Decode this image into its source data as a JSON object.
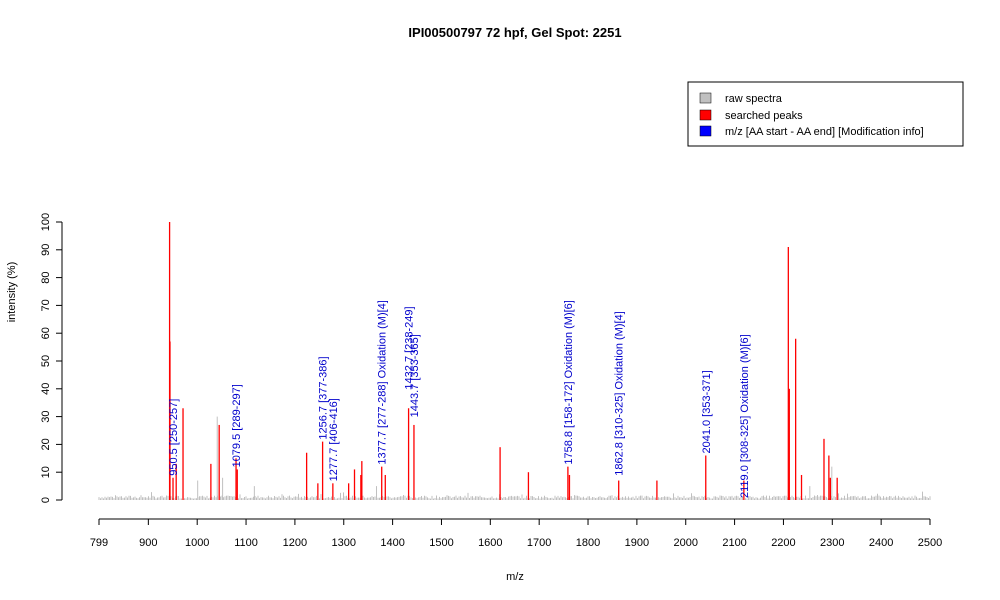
{
  "chart_data": {
    "type": "bar",
    "title": "IPI00500797  72 hpf, Gel Spot: 2251",
    "xlabel": "m/z",
    "ylabel": "intensity (%)",
    "xlim": [
      799,
      2500
    ],
    "ylim": [
      0,
      100
    ],
    "x_ticks": [
      799,
      900,
      1000,
      1100,
      1200,
      1300,
      1400,
      1500,
      1600,
      1700,
      1800,
      1900,
      2000,
      2100,
      2200,
      2300,
      2400,
      2500
    ],
    "y_ticks": [
      0,
      10,
      20,
      30,
      40,
      50,
      60,
      70,
      80,
      90,
      100
    ],
    "legend": {
      "placement": "top-right",
      "entries": [
        {
          "label": "raw spectra",
          "color": "#c0c0c0"
        },
        {
          "label": "searched peaks",
          "color": "#ff0000"
        },
        {
          "label": "m/z [AA start - AA end] [Modification info]",
          "color": "#0000ff"
        }
      ]
    },
    "colors": {
      "raw": "#c0c0c0",
      "peak": "#ff0000",
      "label": "#0000cc"
    },
    "searched_peaks": [
      {
        "mz": 943.5,
        "intensity": 100
      },
      {
        "mz": 944.3,
        "intensity": 57
      },
      {
        "mz": 957,
        "intensity": 13
      },
      {
        "mz": 971,
        "intensity": 33
      },
      {
        "mz": 950.5,
        "intensity": 8
      },
      {
        "mz": 1028,
        "intensity": 13
      },
      {
        "mz": 1045,
        "intensity": 27
      },
      {
        "mz": 1079.5,
        "intensity": 15
      },
      {
        "mz": 1082,
        "intensity": 11
      },
      {
        "mz": 1224,
        "intensity": 17
      },
      {
        "mz": 1247,
        "intensity": 6
      },
      {
        "mz": 1256.7,
        "intensity": 21
      },
      {
        "mz": 1277.7,
        "intensity": 6
      },
      {
        "mz": 1310,
        "intensity": 6
      },
      {
        "mz": 1322,
        "intensity": 11
      },
      {
        "mz": 1335,
        "intensity": 9
      },
      {
        "mz": 1337,
        "intensity": 14
      },
      {
        "mz": 1377.7,
        "intensity": 12
      },
      {
        "mz": 1385,
        "intensity": 9
      },
      {
        "mz": 1432.7,
        "intensity": 33
      },
      {
        "mz": 1443.7,
        "intensity": 27
      },
      {
        "mz": 1620,
        "intensity": 19
      },
      {
        "mz": 1678,
        "intensity": 10
      },
      {
        "mz": 1758.8,
        "intensity": 12
      },
      {
        "mz": 1762,
        "intensity": 9
      },
      {
        "mz": 1862.8,
        "intensity": 7
      },
      {
        "mz": 1941,
        "intensity": 7
      },
      {
        "mz": 2041.0,
        "intensity": 16
      },
      {
        "mz": 2119.0,
        "intensity": 7
      },
      {
        "mz": 2210,
        "intensity": 91
      },
      {
        "mz": 2212,
        "intensity": 40
      },
      {
        "mz": 2225,
        "intensity": 58
      },
      {
        "mz": 2237,
        "intensity": 9
      },
      {
        "mz": 2283,
        "intensity": 22
      },
      {
        "mz": 2293,
        "intensity": 16
      },
      {
        "mz": 2296,
        "intensity": 8
      },
      {
        "mz": 2310,
        "intensity": 8
      }
    ],
    "raw_peaks": [
      {
        "mz": 1041,
        "intensity": 30
      },
      {
        "mz": 1001,
        "intensity": 7
      },
      {
        "mz": 1052,
        "intensity": 8
      },
      {
        "mz": 1117,
        "intensity": 5
      },
      {
        "mz": 1367,
        "intensity": 5
      },
      {
        "mz": 2299,
        "intensity": 12
      },
      {
        "mz": 2254,
        "intensity": 5
      }
    ],
    "annotations": [
      {
        "mz": 950.5,
        "text": "950.5 [250-257]",
        "base": 8
      },
      {
        "mz": 1079.5,
        "text": "1079.5 [289-297]",
        "base": 11
      },
      {
        "mz": 1256.7,
        "text": "1256.7 [377-386]",
        "base": 21
      },
      {
        "mz": 1277.7,
        "text": "1277.7 [406-416]",
        "base": 6
      },
      {
        "mz": 1377.7,
        "text": "1377.7 [277-288] Oxidation (M)[4]",
        "base": 12
      },
      {
        "mz": 1432.7,
        "text": "1432.7 [238-249]",
        "base": 39
      },
      {
        "mz": 1443.7,
        "text": "1443.7 [353-365]",
        "base": 29
      },
      {
        "mz": 1758.8,
        "text": "1758.8 [158-172] Oxidation (M)[6]",
        "base": 12
      },
      {
        "mz": 1862.8,
        "text": "1862.8 [310-325] Oxidation (M)[4]",
        "base": 8
      },
      {
        "mz": 2041.0,
        "text": "2041.0 [353-371]",
        "base": 16
      },
      {
        "mz": 2119.0,
        "text": "2119.0 [308-325] Oxidation (M)[6]",
        "base": 0
      }
    ]
  }
}
